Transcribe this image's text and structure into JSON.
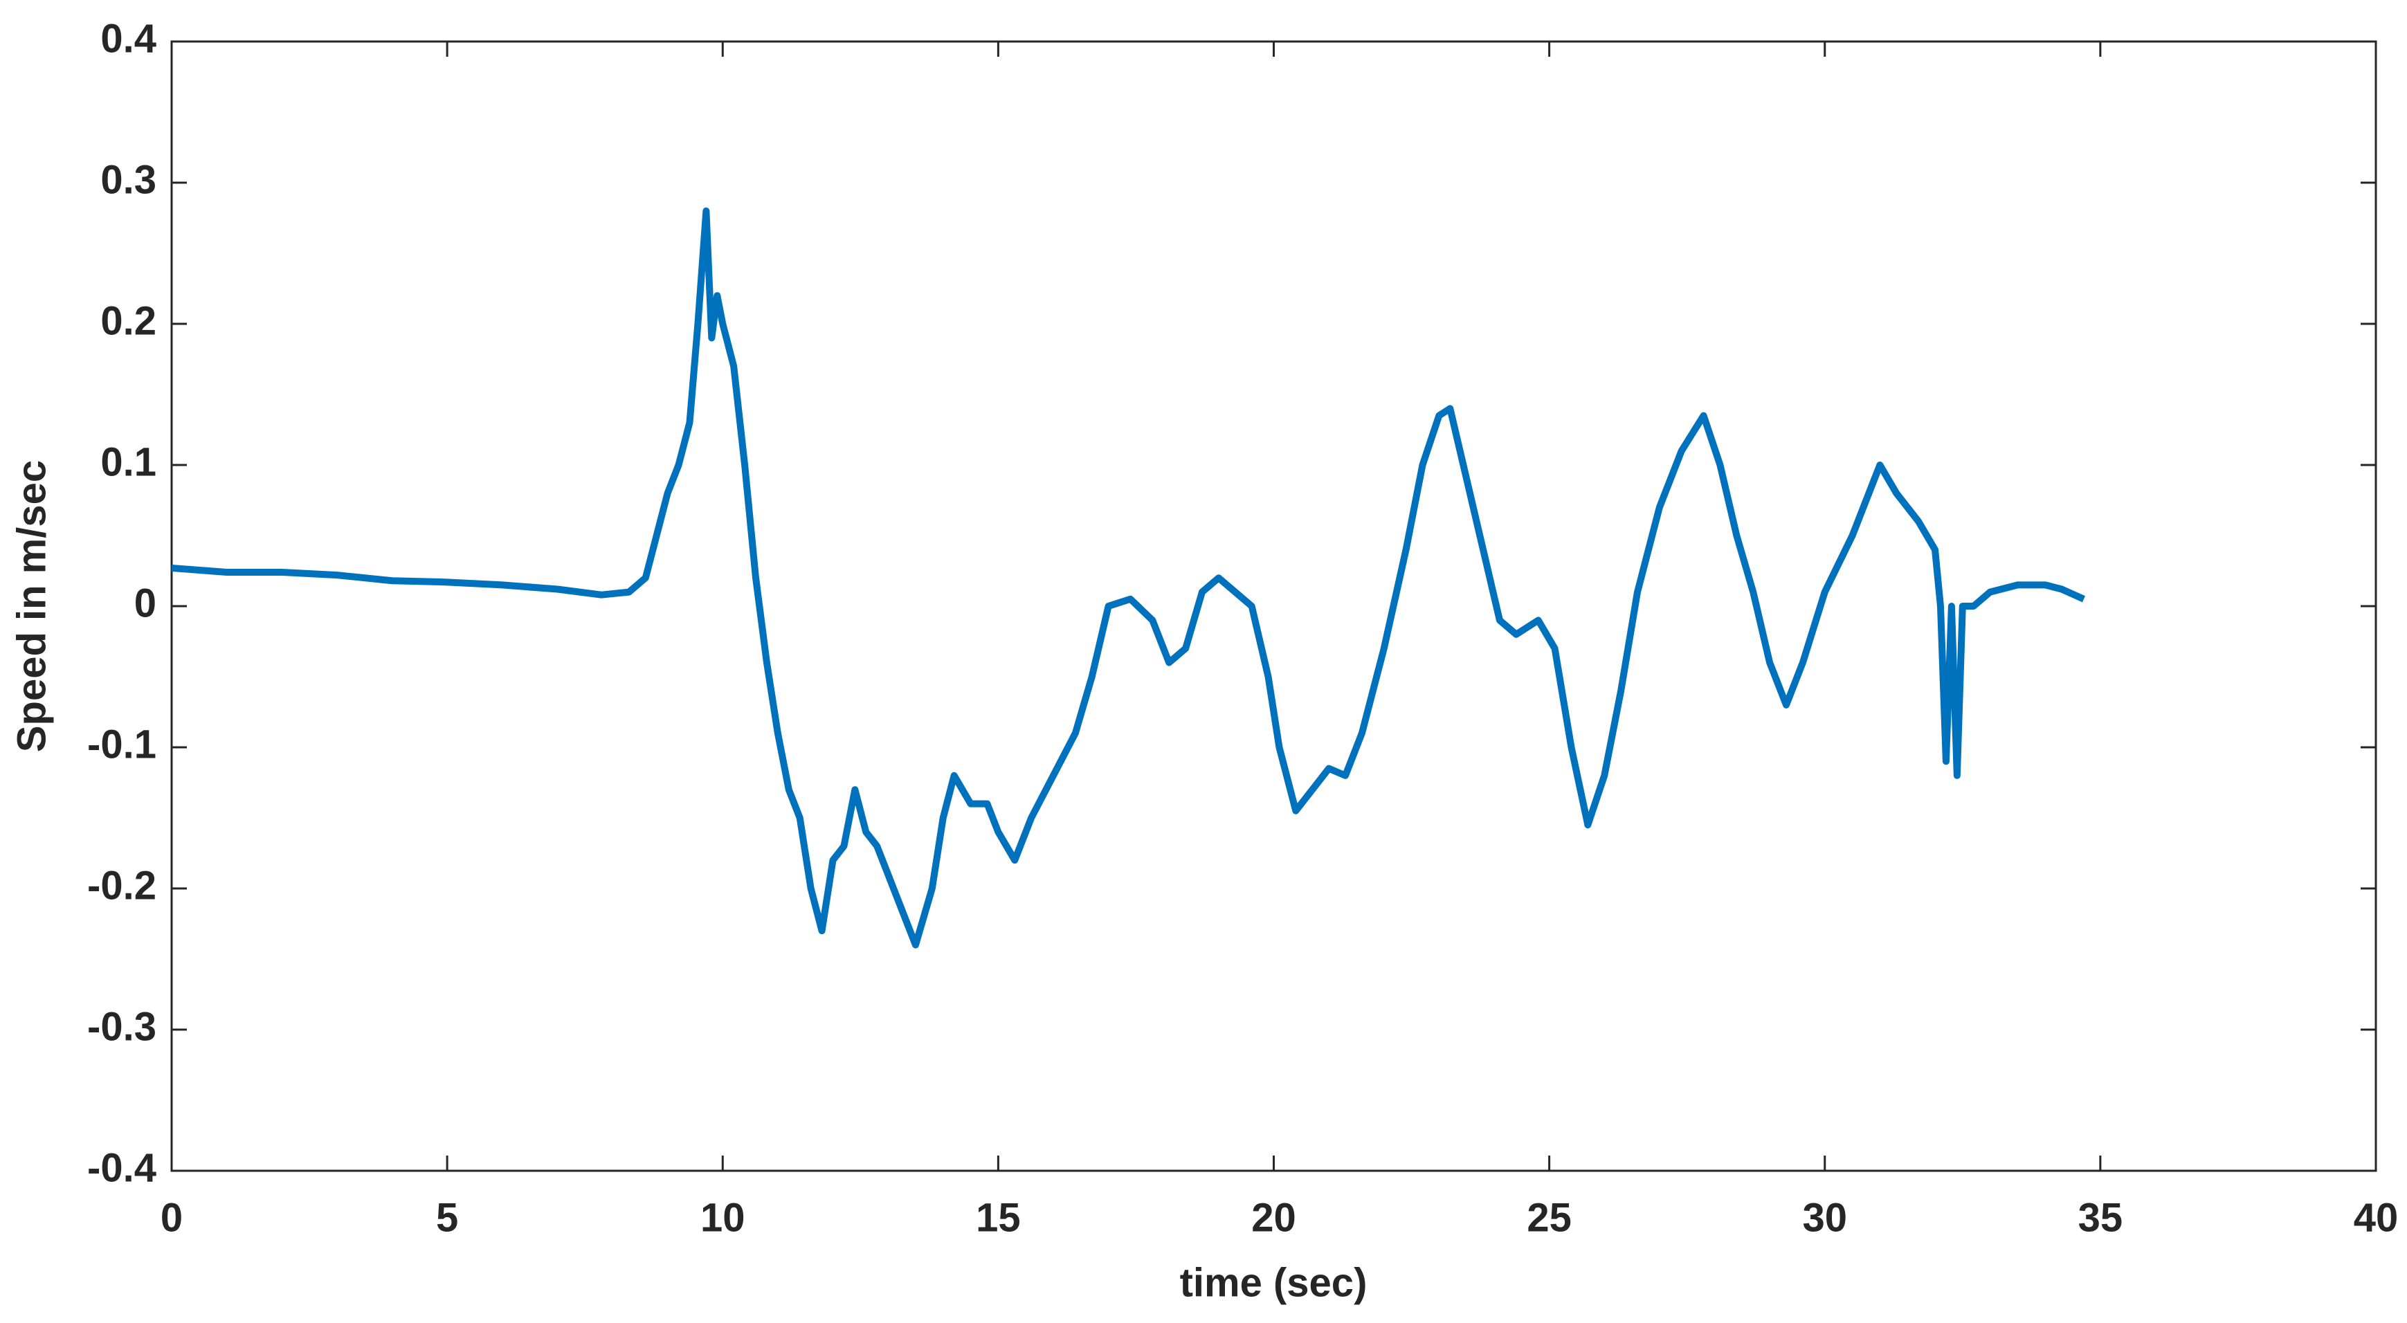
{
  "chart_data": {
    "type": "line",
    "xlabel": "time (sec)",
    "ylabel": "Speed in m/sec",
    "xlim": [
      0,
      40
    ],
    "xticks": [
      0,
      5,
      10,
      15,
      20,
      25,
      30,
      35,
      40
    ],
    "ylim": [
      -0.4,
      0.4
    ],
    "yticks": [
      -0.4,
      -0.3,
      -0.2,
      -0.1,
      0,
      0.1,
      0.2,
      0.3,
      0.4
    ],
    "grid": false,
    "x": [
      0,
      1,
      2,
      3,
      4,
      5,
      6,
      7,
      7.8,
      8.3,
      8.6,
      8.8,
      9.0,
      9.2,
      9.4,
      9.55,
      9.7,
      9.8,
      9.9,
      10.0,
      10.2,
      10.4,
      10.6,
      10.8,
      11.0,
      11.2,
      11.4,
      11.6,
      11.8,
      12.0,
      12.2,
      12.4,
      12.6,
      12.8,
      13.0,
      13.3,
      13.5,
      13.8,
      14.0,
      14.2,
      14.5,
      14.8,
      15.0,
      15.3,
      15.6,
      16.0,
      16.4,
      16.7,
      17.0,
      17.4,
      17.8,
      18.1,
      18.4,
      18.7,
      19.0,
      19.3,
      19.6,
      19.9,
      20.1,
      20.4,
      20.7,
      21.0,
      21.3,
      21.6,
      22.0,
      22.4,
      22.7,
      23.0,
      23.2,
      23.5,
      23.8,
      24.1,
      24.4,
      24.8,
      25.1,
      25.4,
      25.7,
      26.0,
      26.3,
      26.6,
      27.0,
      27.4,
      27.8,
      28.1,
      28.4,
      28.7,
      29.0,
      29.3,
      29.6,
      30.0,
      30.5,
      31.0,
      31.3,
      31.7,
      32.0,
      32.1,
      32.2,
      32.3,
      32.4,
      32.5,
      32.7,
      33.0,
      33.5,
      34.0,
      34.3,
      34.7
    ],
    "series": [
      {
        "name": "speed",
        "color": "#0072BD",
        "values": [
          0.027,
          0.024,
          0.024,
          0.022,
          0.018,
          0.017,
          0.015,
          0.012,
          0.008,
          0.01,
          0.02,
          0.05,
          0.08,
          0.1,
          0.13,
          0.2,
          0.28,
          0.19,
          0.22,
          0.2,
          0.17,
          0.1,
          0.02,
          -0.04,
          -0.09,
          -0.13,
          -0.15,
          -0.2,
          -0.23,
          -0.18,
          -0.17,
          -0.13,
          -0.16,
          -0.17,
          -0.19,
          -0.22,
          -0.24,
          -0.2,
          -0.15,
          -0.12,
          -0.14,
          -0.14,
          -0.16,
          -0.18,
          -0.15,
          -0.12,
          -0.09,
          -0.05,
          0.0,
          0.005,
          -0.01,
          -0.04,
          -0.03,
          0.01,
          0.02,
          0.01,
          0.0,
          -0.05,
          -0.1,
          -0.145,
          -0.13,
          -0.115,
          -0.12,
          -0.09,
          -0.03,
          0.04,
          0.1,
          0.135,
          0.14,
          0.09,
          0.04,
          -0.01,
          -0.02,
          -0.01,
          -0.03,
          -0.1,
          -0.155,
          -0.12,
          -0.06,
          0.01,
          0.07,
          0.11,
          0.135,
          0.1,
          0.05,
          0.01,
          -0.04,
          -0.07,
          -0.04,
          0.01,
          0.05,
          0.1,
          0.08,
          0.06,
          0.04,
          0.0,
          -0.11,
          0.0,
          -0.12,
          0.0,
          0.0,
          0.01,
          0.015,
          0.015,
          0.012,
          0.005
        ]
      }
    ]
  }
}
